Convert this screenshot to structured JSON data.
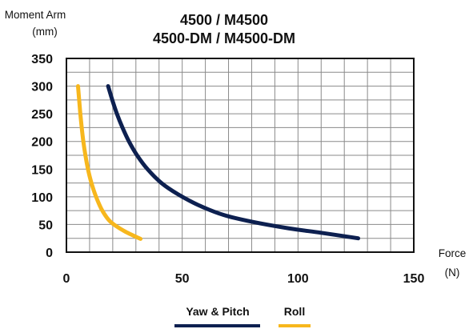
{
  "chart_data": {
    "type": "line",
    "title": [
      "4500 / M4500",
      "4500-DM / M4500-DM"
    ],
    "ylabel": [
      "Moment Arm",
      "(mm)"
    ],
    "xlabel": [
      "Force",
      "(N)"
    ],
    "xlim": [
      0,
      150
    ],
    "ylim": [
      0,
      350
    ],
    "x_ticks": [
      0,
      50,
      100,
      150
    ],
    "y_ticks": [
      0,
      50,
      100,
      150,
      200,
      250,
      300,
      350
    ],
    "grid": true,
    "legend_position": "bottom-center",
    "series": [
      {
        "name": "Yaw & Pitch",
        "color": "#0d2050",
        "points": [
          [
            18,
            300
          ],
          [
            19.8,
            275
          ],
          [
            21.8,
            250
          ],
          [
            24.2,
            225
          ],
          [
            27,
            200
          ],
          [
            30.5,
            175
          ],
          [
            35,
            150
          ],
          [
            41,
            125
          ],
          [
            48,
            105
          ],
          [
            57,
            85
          ],
          [
            68,
            67
          ],
          [
            80,
            55
          ],
          [
            96,
            43
          ],
          [
            110,
            35
          ],
          [
            126,
            25
          ]
        ]
      },
      {
        "name": "Roll",
        "color": "#f7b71d",
        "points": [
          [
            5,
            300
          ],
          [
            5.5,
            275
          ],
          [
            6,
            250
          ],
          [
            6.6,
            225
          ],
          [
            7.3,
            200
          ],
          [
            8.2,
            175
          ],
          [
            9.3,
            150
          ],
          [
            10.8,
            125
          ],
          [
            12.8,
            100
          ],
          [
            15.5,
            75
          ],
          [
            19,
            55
          ],
          [
            25,
            38
          ],
          [
            32,
            24
          ]
        ]
      }
    ]
  }
}
